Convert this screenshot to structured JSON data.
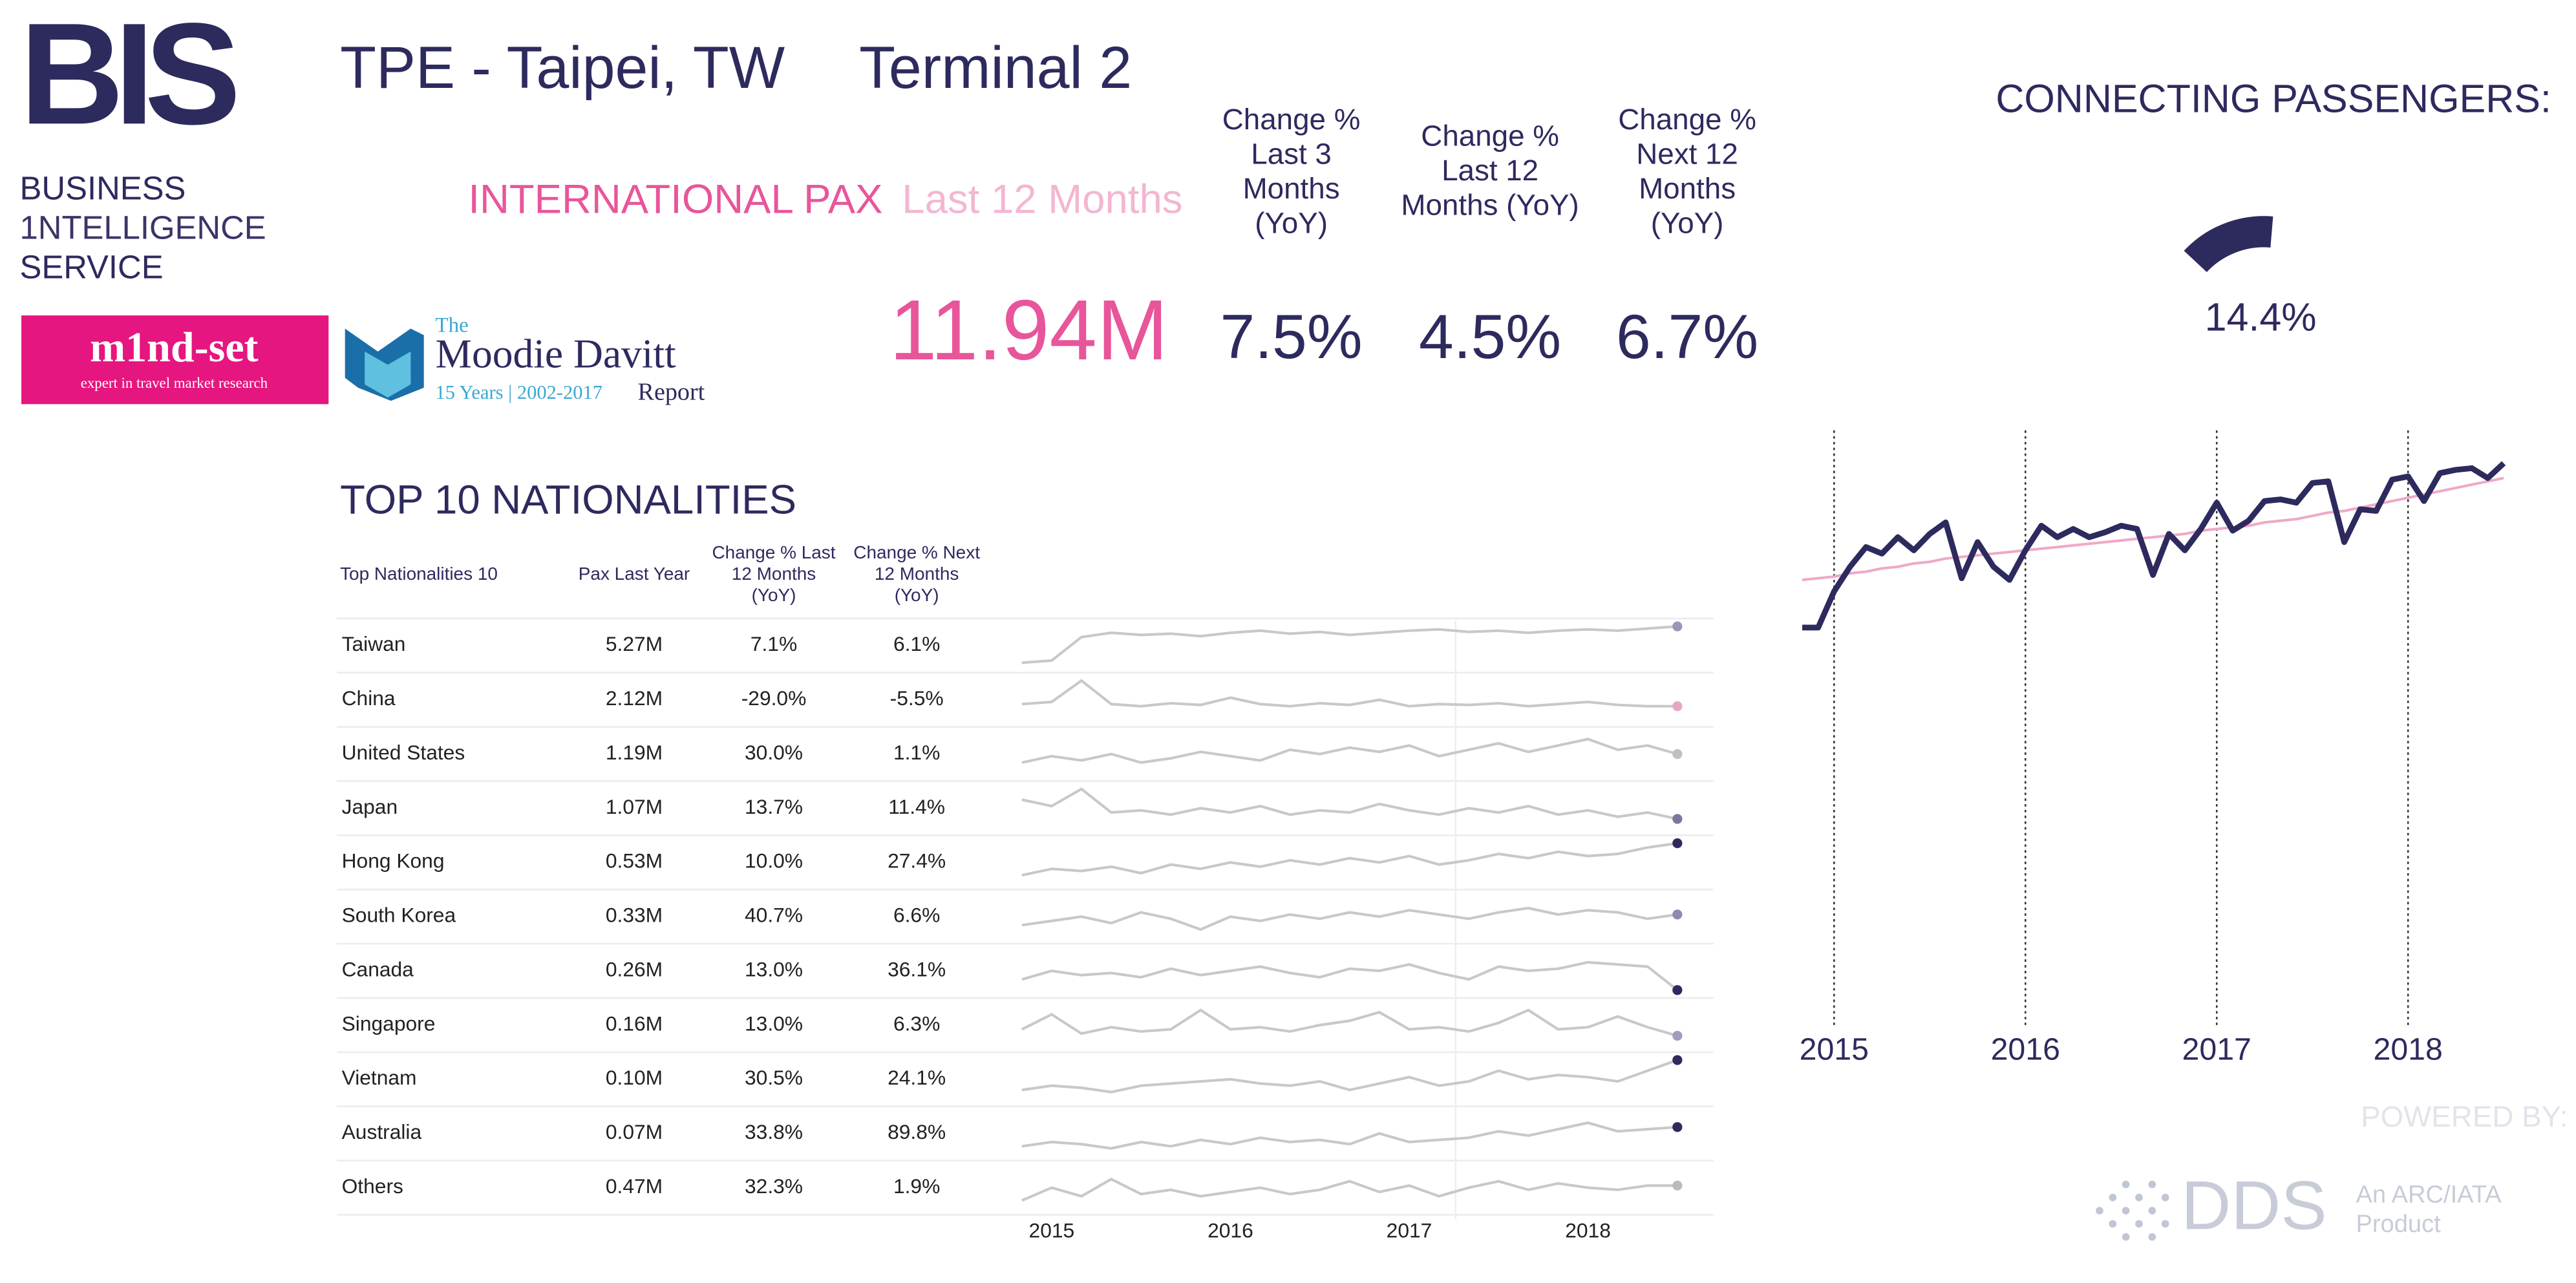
{
  "header": {
    "title": "TPE - Taipei, TW",
    "terminal": "Terminal 2",
    "pax_label": "INTERNATIONAL PAX",
    "pax_period": "Last 12 Months",
    "pax_value": "11.94M",
    "connecting_label": "CONNECTING PASSENGERS:"
  },
  "kpis": [
    {
      "label": [
        "Change %",
        "Last 3",
        "Months",
        "(YoY)"
      ],
      "value": "7.5%"
    },
    {
      "label": [
        "Change %",
        "Last 12",
        "Months (YoY)"
      ],
      "value": "4.5%"
    },
    {
      "label": [
        "Change %",
        "Next 12",
        "Months",
        "(YoY)"
      ],
      "value": "6.7%"
    }
  ],
  "logos": {
    "bis": "BIS",
    "bis_lines": [
      "BUSINESS",
      "1NTELLIGENCE",
      "SERVICE"
    ],
    "mindset": "m1nd-set",
    "mindset_tag": "expert in travel market research",
    "moodie_the": "The",
    "moodie_name": "Moodie Davitt",
    "moodie_years": "15 Years | 2002-2017",
    "moodie_report": "Report",
    "powered": "POWERED BY:",
    "dds": "DDS",
    "dds_tag": [
      "An ARC/IATA",
      "Product"
    ]
  },
  "table": {
    "title": "TOP 10 NATIONALITIES",
    "columns": [
      [
        "Top Nationalities 10"
      ],
      [
        "Pax Last Year"
      ],
      [
        "Change % Last",
        "12 Months",
        "(YoY)"
      ],
      [
        "Change % Next",
        "12 Months",
        "(YoY)"
      ]
    ],
    "rows": [
      [
        "Taiwan",
        "5.27M",
        "7.1%",
        "6.1%"
      ],
      [
        "China",
        "2.12M",
        "-29.0%",
        "-5.5%"
      ],
      [
        "United States",
        "1.19M",
        "30.0%",
        "1.1%"
      ],
      [
        "Japan",
        "1.07M",
        "13.7%",
        "11.4%"
      ],
      [
        "Hong Kong",
        "0.53M",
        "10.0%",
        "27.4%"
      ],
      [
        "South Korea",
        "0.33M",
        "40.7%",
        "6.6%"
      ],
      [
        "Canada",
        "0.26M",
        "13.0%",
        "36.1%"
      ],
      [
        "Singapore",
        "0.16M",
        "13.0%",
        "6.3%"
      ],
      [
        "Vietnam",
        "0.10M",
        "30.5%",
        "24.1%"
      ],
      [
        "Australia",
        "0.07M",
        "33.8%",
        "89.8%"
      ],
      [
        "Others",
        "0.47M",
        "32.3%",
        "1.9%"
      ]
    ]
  },
  "chart_data": [
    {
      "type": "line",
      "categories": [
        null,
        null,
        "2015",
        null,
        null,
        null,
        null,
        null,
        null,
        null,
        null,
        null,
        null,
        null,
        "2016",
        null,
        null,
        null,
        null,
        null,
        null,
        null,
        null,
        null,
        null,
        null,
        "2017",
        null,
        null,
        null,
        null,
        null,
        null,
        null,
        null,
        null,
        null,
        null,
        "2018",
        null,
        null,
        null,
        null,
        null,
        null
      ],
      "ylim": [
        0,
        140
      ],
      "xgrid": true,
      "series": [
        {
          "color": "#f0a8c8",
          "width": 1.6,
          "values": [
            47,
            48,
            49,
            51,
            52,
            54,
            55,
            57,
            58,
            60,
            61,
            62,
            63,
            64,
            65,
            66,
            67,
            68,
            69,
            70,
            71,
            72,
            73,
            74,
            75,
            77,
            78,
            79,
            80,
            82,
            83,
            84,
            86,
            88,
            89,
            91,
            93,
            95,
            97,
            99,
            101,
            103,
            105,
            107,
            109
          ]
        },
        {
          "color": "#2d2a5e",
          "width": 3.5,
          "values": [
            18,
            18,
            40,
            55,
            67,
            63,
            73,
            65,
            75,
            82,
            48,
            70,
            55,
            47,
            65,
            80,
            73,
            78,
            73,
            76,
            80,
            78,
            50,
            75,
            65,
            78,
            94,
            77,
            83,
            95,
            96,
            94,
            106,
            107,
            70,
            90,
            89,
            108,
            110,
            95,
            112,
            114,
            115,
            109,
            118
          ]
        }
      ]
    },
    {
      "type": "sparkline",
      "categories": [
        null,
        "2015",
        null,
        null,
        null,
        null,
        null,
        "2016",
        null,
        null,
        null,
        null,
        null,
        "2017",
        null,
        null,
        null,
        null,
        null,
        "2018",
        null,
        null,
        null
      ],
      "ylim": [
        0,
        100
      ],
      "line_color": "#c8c8c8",
      "series": [
        {
          "color": "#9a96b8",
          "values": [
            10,
            15,
            70,
            80,
            75,
            78,
            72,
            80,
            85,
            78,
            82,
            75,
            80,
            85,
            88,
            82,
            85,
            80,
            85,
            88,
            85,
            90,
            95
          ]
        },
        {
          "color": "#e8a6c4",
          "values": [
            40,
            45,
            95,
            40,
            35,
            42,
            38,
            55,
            40,
            35,
            42,
            38,
            50,
            35,
            40,
            38,
            42,
            35,
            40,
            45,
            38,
            35,
            35
          ]
        },
        {
          "color": "#c0c0c0",
          "values": [
            30,
            45,
            35,
            50,
            30,
            40,
            55,
            45,
            35,
            60,
            50,
            65,
            55,
            70,
            45,
            60,
            75,
            55,
            70,
            85,
            60,
            70,
            50
          ]
        },
        {
          "color": "#7a76a0",
          "values": [
            70,
            55,
            95,
            40,
            45,
            35,
            50,
            40,
            55,
            35,
            45,
            40,
            60,
            45,
            35,
            50,
            40,
            55,
            35,
            45,
            30,
            40,
            25
          ]
        },
        {
          "color": "#2d2a5e",
          "values": [
            20,
            35,
            30,
            40,
            25,
            45,
            35,
            50,
            40,
            55,
            45,
            60,
            50,
            65,
            45,
            55,
            70,
            60,
            75,
            65,
            70,
            85,
            95
          ]
        },
        {
          "color": "#8e8ab0",
          "values": [
            30,
            40,
            50,
            35,
            60,
            45,
            20,
            50,
            40,
            55,
            45,
            60,
            50,
            65,
            55,
            45,
            60,
            70,
            55,
            65,
            60,
            45,
            55
          ]
        },
        {
          "color": "#2d2a5e",
          "values": [
            30,
            50,
            40,
            45,
            35,
            55,
            40,
            50,
            60,
            45,
            35,
            55,
            50,
            65,
            45,
            30,
            60,
            50,
            55,
            70,
            65,
            60,
            5
          ]
        },
        {
          "color": "#a09cc0",
          "values": [
            40,
            75,
            30,
            45,
            35,
            40,
            85,
            40,
            45,
            35,
            50,
            60,
            80,
            40,
            45,
            35,
            55,
            85,
            40,
            45,
            70,
            45,
            25
          ]
        },
        {
          "color": "#2d2a5e",
          "values": [
            25,
            35,
            30,
            20,
            35,
            40,
            45,
            50,
            40,
            35,
            45,
            25,
            40,
            55,
            35,
            45,
            70,
            50,
            60,
            55,
            45,
            70,
            95
          ]
        },
        {
          "color": "#2d2a5e",
          "values": [
            20,
            30,
            25,
            15,
            30,
            20,
            35,
            25,
            40,
            30,
            35,
            25,
            50,
            30,
            35,
            40,
            55,
            45,
            60,
            75,
            55,
            60,
            65
          ]
        },
        {
          "color": "#bbbbbb",
          "values": [
            20,
            50,
            30,
            70,
            35,
            45,
            30,
            40,
            50,
            35,
            45,
            65,
            40,
            55,
            30,
            50,
            65,
            45,
            60,
            50,
            45,
            55,
            55
          ]
        }
      ]
    },
    {
      "type": "gauge",
      "value": 14.4,
      "value_label": "14.4%",
      "color": "#2d2a5e"
    }
  ]
}
